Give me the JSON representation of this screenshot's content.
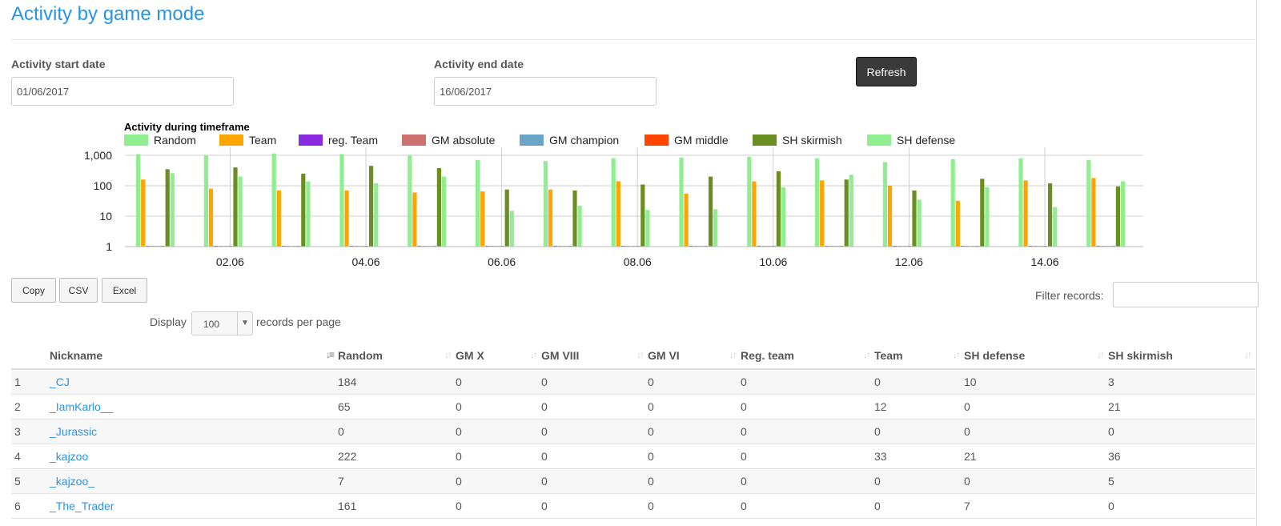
{
  "header": {
    "title": "Activity by game mode"
  },
  "filters": {
    "start_label": "Activity start date",
    "start_value": "01/06/2017",
    "end_label": "Activity end date",
    "end_value": "16/06/2017",
    "refresh_label": "Refresh"
  },
  "chart_data": {
    "type": "bar",
    "title": "Activity during timeframe",
    "yscale": "log",
    "ylim": [
      1,
      1000
    ],
    "yticks": [
      "1",
      "10",
      "100",
      "1,000"
    ],
    "xticks": [
      "02.06",
      "04.06",
      "06.06",
      "08.06",
      "10.06",
      "12.06",
      "14.06"
    ],
    "categories": [
      "01.06",
      "02.06",
      "03.06",
      "04.06",
      "05.06",
      "06.06",
      "07.06",
      "08.06",
      "09.06",
      "10.06",
      "11.06",
      "12.06",
      "13.06",
      "14.06",
      "15.06"
    ],
    "legend_position": "top",
    "series": [
      {
        "name": "Random",
        "color": "#90ee90",
        "values": [
          1100,
          1000,
          1150,
          1100,
          1000,
          700,
          650,
          800,
          850,
          900,
          800,
          600,
          750,
          800,
          700
        ]
      },
      {
        "name": "Team",
        "color": "#ffa500",
        "values": [
          160,
          80,
          70,
          70,
          60,
          65,
          75,
          140,
          55,
          140,
          150,
          100,
          32,
          150,
          180
        ]
      },
      {
        "name": "reg. Team",
        "color": "#8a2be2",
        "values": [
          0,
          0,
          0,
          0,
          0,
          0,
          0,
          0,
          0,
          0,
          0,
          0,
          0,
          0,
          0
        ]
      },
      {
        "name": "GM absolute",
        "color": "#cd7070",
        "values": [
          0,
          0,
          0,
          0,
          0,
          0,
          0,
          0,
          0,
          0,
          0,
          0,
          0,
          0,
          0
        ]
      },
      {
        "name": "GM champion",
        "color": "#6aa5c8",
        "values": [
          0,
          0,
          0,
          0,
          0,
          0,
          0,
          0,
          0,
          0,
          0,
          0,
          0,
          0,
          0
        ]
      },
      {
        "name": "GM middle",
        "color": "#ff4500",
        "values": [
          0,
          0,
          0,
          0,
          0,
          0,
          0,
          0,
          0,
          0,
          0,
          0,
          0,
          0,
          0
        ]
      },
      {
        "name": "SH skirmish",
        "color": "#6b8e23",
        "values": [
          350,
          400,
          250,
          450,
          380,
          75,
          70,
          110,
          200,
          300,
          160,
          70,
          170,
          120,
          95
        ]
      },
      {
        "name": "SH defense",
        "color": "#90ee90",
        "values": [
          260,
          200,
          140,
          120,
          200,
          15,
          22,
          16,
          17,
          90,
          230,
          35,
          90,
          20,
          140
        ]
      }
    ]
  },
  "toolbar": {
    "copy": "Copy",
    "csv": "CSV",
    "excel": "Excel",
    "filter_label": "Filter records:"
  },
  "paging": {
    "display_label": "Display",
    "page_size": "100",
    "records_label": "records per page"
  },
  "table": {
    "columns": [
      "Nickname",
      "Random",
      "GM X",
      "GM VIII",
      "GM VI",
      "Reg. team",
      "Team",
      "SH defense",
      "SH skirmish"
    ],
    "rows": [
      [
        "1",
        "_CJ",
        "184",
        "0",
        "0",
        "0",
        "0",
        "0",
        "10",
        "3"
      ],
      [
        "2",
        "_IamKarlo__",
        "65",
        "0",
        "0",
        "0",
        "0",
        "12",
        "0",
        "21"
      ],
      [
        "3",
        "_Jurassic",
        "0",
        "0",
        "0",
        "0",
        "0",
        "0",
        "0",
        "0"
      ],
      [
        "4",
        "_kajzoo",
        "222",
        "0",
        "0",
        "0",
        "0",
        "33",
        "21",
        "36"
      ],
      [
        "5",
        "_kajzoo_",
        "7",
        "0",
        "0",
        "0",
        "0",
        "0",
        "0",
        "5"
      ],
      [
        "6",
        "_The_Trader",
        "161",
        "0",
        "0",
        "0",
        "0",
        "0",
        "7",
        "0"
      ]
    ]
  }
}
